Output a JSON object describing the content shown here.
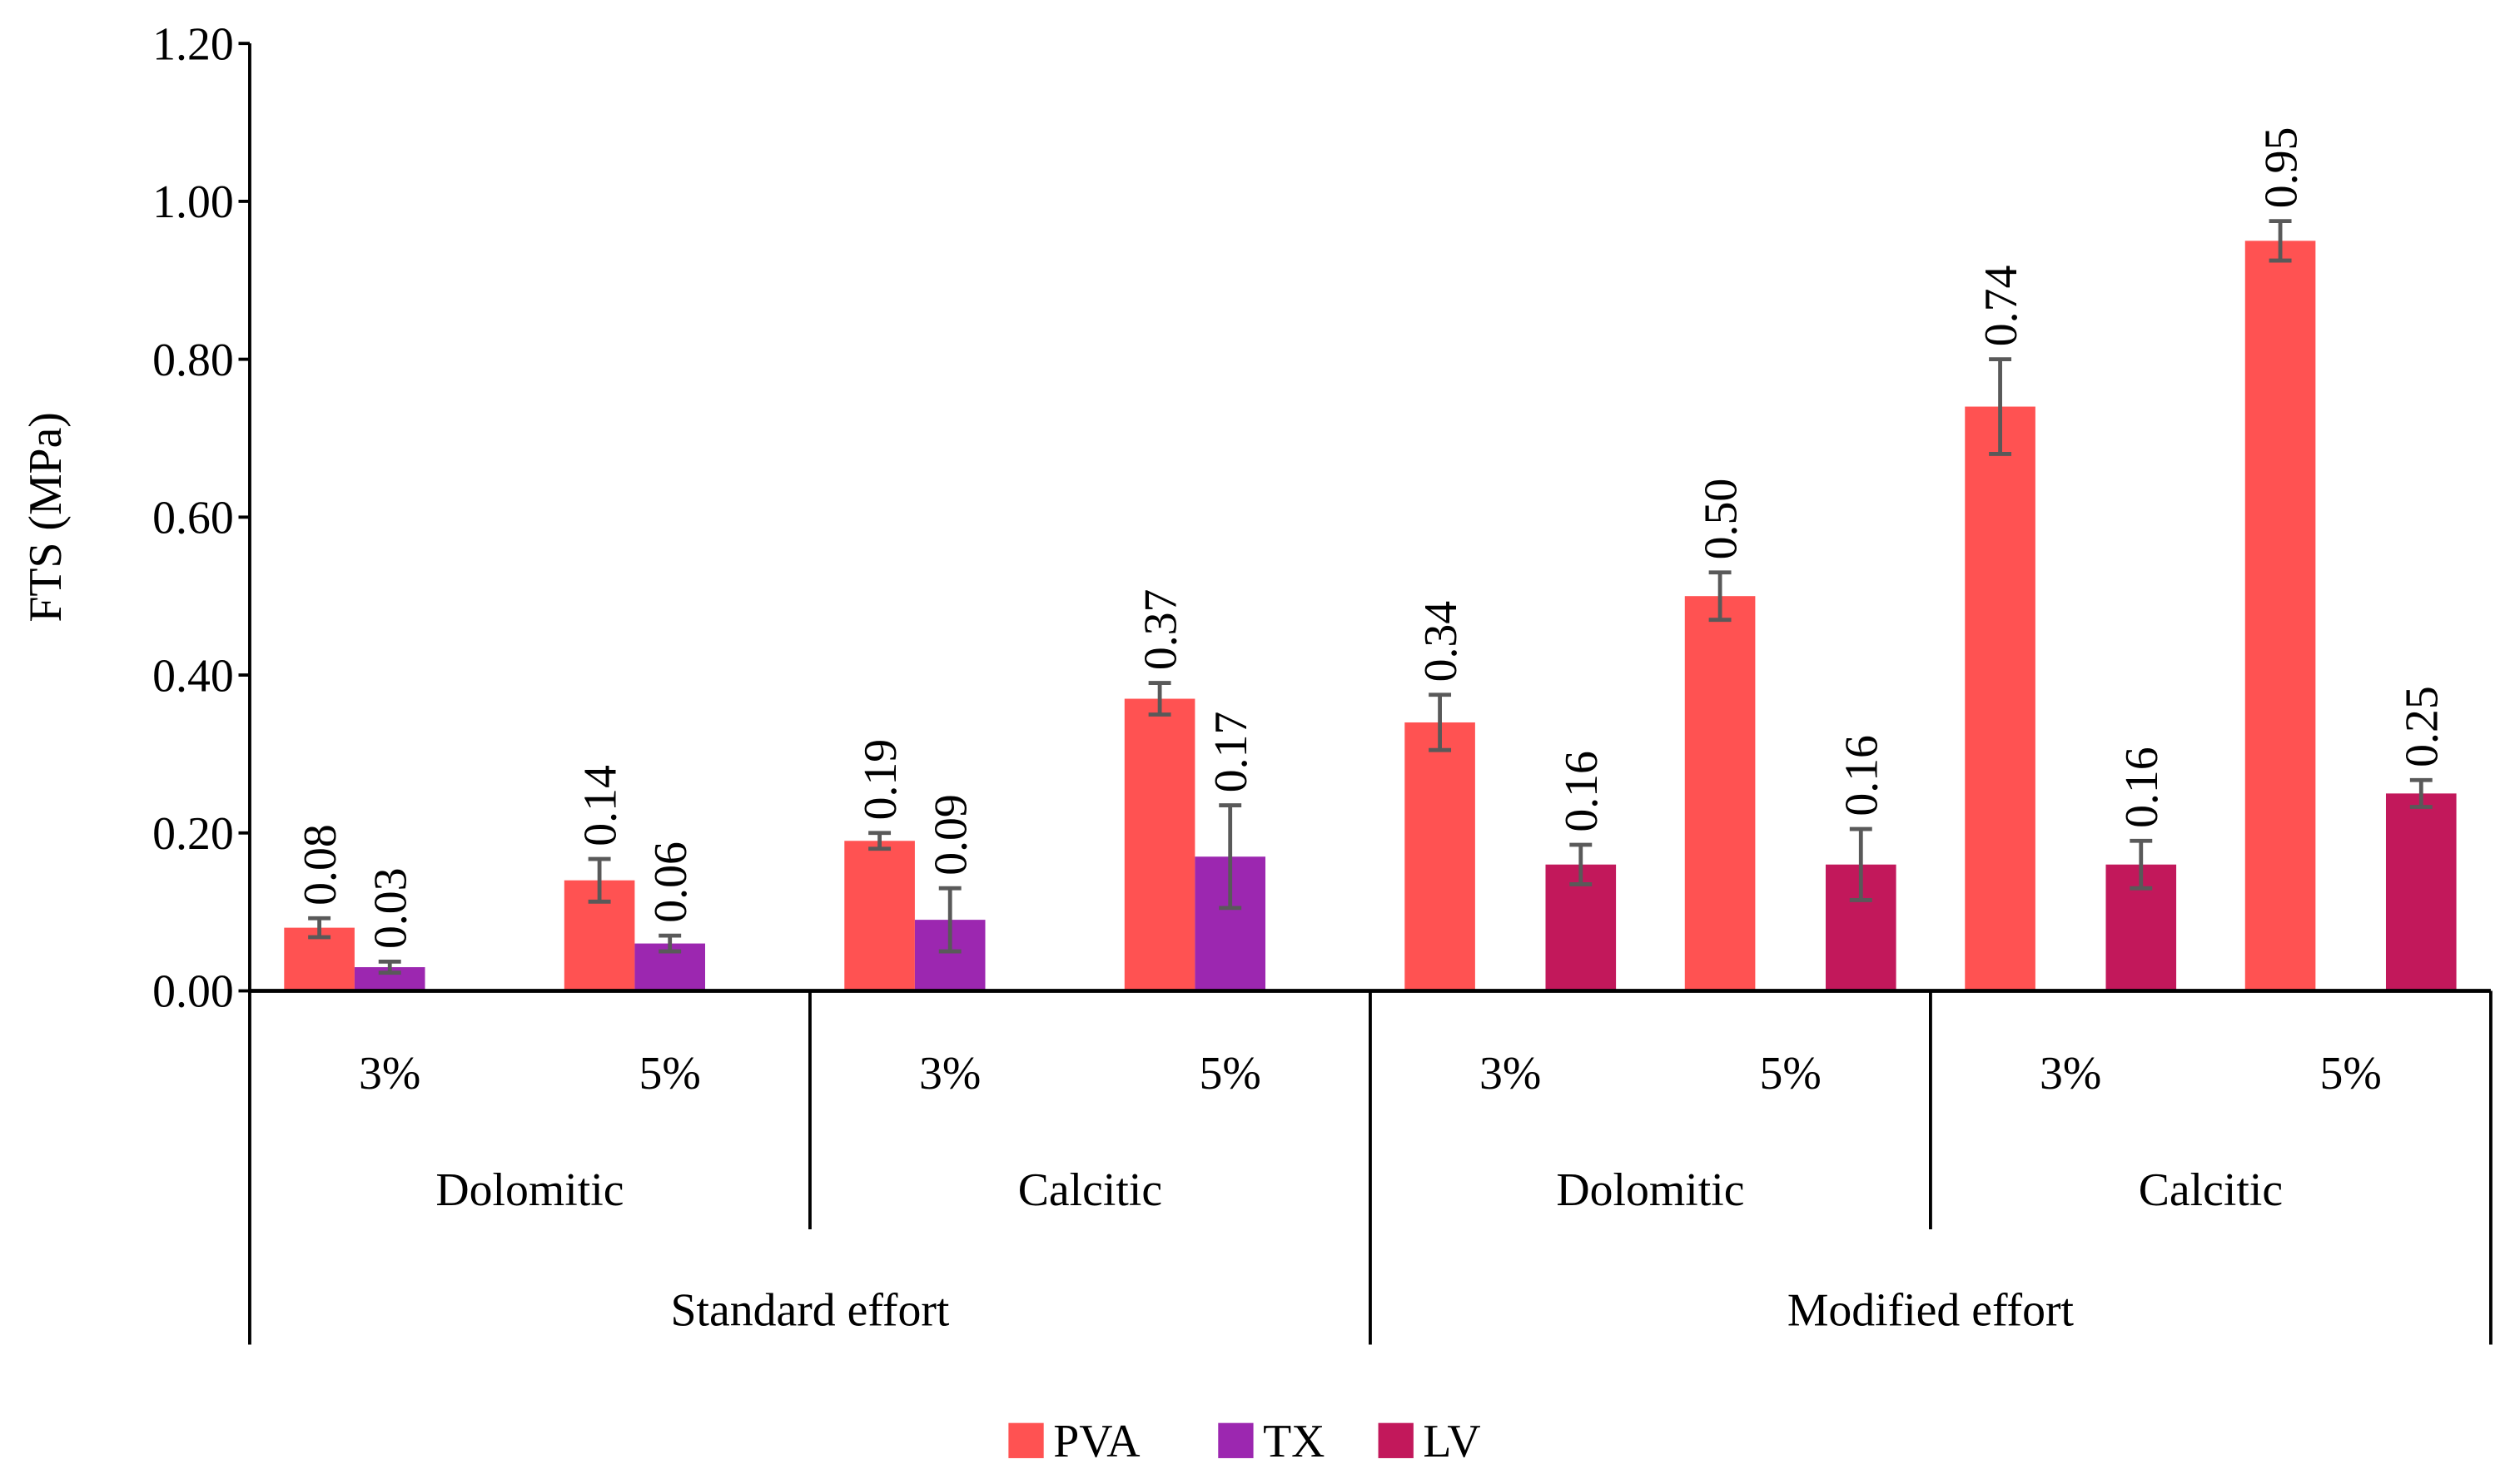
{
  "chart_data": {
    "type": "bar",
    "title": "",
    "ylabel": "FTS (MPa)",
    "xlabel": "",
    "ylim": [
      0,
      1.2
    ],
    "yticks": [
      "0.00",
      "0.20",
      "0.40",
      "0.60",
      "0.80",
      "1.00",
      "1.20"
    ],
    "grid": false,
    "legend_position": "bottom-center",
    "categories": [
      {
        "effort": "Standard effort",
        "lime": "Dolomitic",
        "content": "3%"
      },
      {
        "effort": "Standard effort",
        "lime": "Dolomitic",
        "content": "5%"
      },
      {
        "effort": "Standard effort",
        "lime": "Calcitic",
        "content": "3%"
      },
      {
        "effort": "Standard effort",
        "lime": "Calcitic",
        "content": "5%"
      },
      {
        "effort": "Modified effort",
        "lime": "Dolomitic",
        "content": "3%"
      },
      {
        "effort": "Modified effort",
        "lime": "Dolomitic",
        "content": "5%"
      },
      {
        "effort": "Modified effort",
        "lime": "Calcitic",
        "content": "3%"
      },
      {
        "effort": "Modified effort",
        "lime": "Calcitic",
        "content": "5%"
      }
    ],
    "level_labels": {
      "content": [
        "3%",
        "5%",
        "3%",
        "5%",
        "3%",
        "5%",
        "3%",
        "5%"
      ],
      "lime": [
        "Dolomitic",
        "Calcitic",
        "Dolomitic",
        "Calcitic"
      ],
      "effort": [
        "Standard effort",
        "Modified effort"
      ]
    },
    "series": [
      {
        "name": "PVA",
        "color": "#FF5252",
        "values": [
          0.08,
          0.14,
          0.19,
          0.37,
          0.34,
          0.5,
          0.74,
          0.95
        ],
        "labels": [
          "0.08",
          "0.14",
          "0.19",
          "0.37",
          "0.34",
          "0.50",
          "0.74",
          "0.95"
        ],
        "errors": [
          0.012,
          0.027,
          0.01,
          0.02,
          0.035,
          0.03,
          0.06,
          0.025
        ]
      },
      {
        "name": "TX",
        "color": "#9C27B0",
        "values": [
          0.03,
          0.06,
          0.09,
          0.17,
          null,
          null,
          null,
          null
        ],
        "labels": [
          "0.03",
          "0.06",
          "0.09",
          "0.17",
          null,
          null,
          null,
          null
        ],
        "errors": [
          0.007,
          0.01,
          0.04,
          0.065,
          null,
          null,
          null,
          null
        ]
      },
      {
        "name": "LV",
        "color": "#C2185B",
        "values": [
          null,
          null,
          null,
          null,
          0.16,
          0.16,
          0.16,
          0.25
        ],
        "labels": [
          null,
          null,
          null,
          null,
          "0.16",
          "0.16",
          "0.16",
          "0.25"
        ],
        "errors": [
          null,
          null,
          null,
          null,
          0.025,
          0.045,
          0.03,
          0.017
        ]
      }
    ],
    "error_bar_color": "#595959"
  }
}
